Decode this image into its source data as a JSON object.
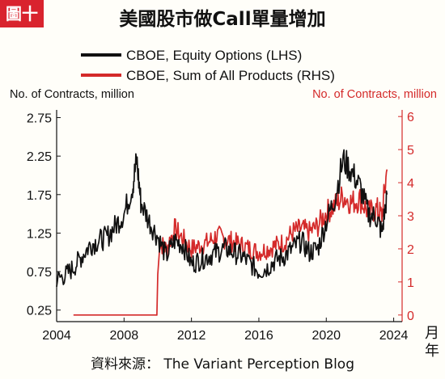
{
  "badge": "圖十",
  "title": "美國股市做Call單量增加",
  "source": "資料來源： The Variant Perception Blog",
  "colors": {
    "equity": "#111111",
    "all_products": "#d42a2a",
    "right_axis": "#d42a2a",
    "badge": "#d9232e"
  },
  "chart_data": {
    "type": "line",
    "title": "美國股市做Call單量增加",
    "xlabel": "月年",
    "ylabel_left": "No. of Contracts, million",
    "ylabel_right": "No. of Contracts, million",
    "xlim": [
      2004,
      2024.5
    ],
    "ylim_left": [
      0.1,
      2.85
    ],
    "ylim_right": [
      -0.2,
      6.2
    ],
    "xticks": [
      "2004",
      "2008",
      "2012",
      "2016",
      "2020",
      "2024"
    ],
    "yticks_left": [
      "2.75",
      "2.25",
      "1.75",
      "1.25",
      "0.75",
      "0.25"
    ],
    "yticks_right": [
      "6",
      "5",
      "4",
      "3",
      "2",
      "1",
      "0"
    ],
    "legend": "top",
    "grid": false,
    "series": [
      {
        "name": "CBOE, Equity Options (LHS)",
        "axis": "left",
        "x": [
          2004.0,
          2004.5,
          2005.0,
          2005.5,
          2006.0,
          2006.5,
          2007.0,
          2007.5,
          2008.0,
          2008.5,
          2008.75,
          2009.0,
          2009.5,
          2010.0,
          2010.5,
          2011.0,
          2011.5,
          2012.0,
          2012.5,
          2013.0,
          2013.5,
          2014.0,
          2014.5,
          2015.0,
          2015.5,
          2016.0,
          2016.5,
          2017.0,
          2017.5,
          2018.0,
          2018.5,
          2019.0,
          2019.5,
          2020.0,
          2020.5,
          2021.0,
          2021.5,
          2022.0,
          2022.5,
          2023.0,
          2023.3,
          2023.6
        ],
        "values": [
          0.65,
          0.7,
          0.8,
          0.95,
          1.1,
          1.15,
          1.2,
          1.35,
          1.5,
          1.85,
          2.2,
          1.65,
          1.4,
          1.2,
          0.95,
          1.15,
          1.1,
          0.85,
          0.9,
          0.95,
          1.0,
          1.05,
          1.0,
          0.95,
          0.85,
          0.75,
          0.8,
          0.9,
          0.95,
          1.05,
          1.15,
          1.0,
          1.05,
          1.4,
          1.7,
          2.2,
          2.05,
          1.85,
          1.5,
          1.45,
          1.25,
          1.75
        ]
      },
      {
        "name": "CBOE, Sum of All Products (RHS)",
        "axis": "right",
        "x": [
          2005.0,
          2006.0,
          2007.0,
          2008.0,
          2009.0,
          2009.95,
          2010.0,
          2010.1,
          2010.5,
          2011.0,
          2011.5,
          2012.0,
          2012.5,
          2013.0,
          2013.5,
          2014.0,
          2014.5,
          2015.0,
          2015.5,
          2016.0,
          2016.5,
          2017.0,
          2017.5,
          2018.0,
          2018.5,
          2019.0,
          2019.5,
          2020.0,
          2020.5,
          2021.0,
          2021.5,
          2022.0,
          2022.5,
          2023.0,
          2023.3,
          2023.6
        ],
        "values": [
          0,
          0,
          0,
          0,
          0,
          0,
          1.2,
          2.2,
          2.0,
          2.6,
          2.3,
          2.0,
          2.1,
          2.2,
          2.4,
          2.3,
          2.2,
          2.1,
          2.0,
          1.9,
          2.0,
          2.1,
          2.2,
          2.5,
          2.6,
          2.5,
          2.7,
          3.1,
          3.3,
          3.6,
          3.4,
          3.5,
          3.1,
          3.2,
          3.0,
          4.4
        ]
      }
    ]
  }
}
